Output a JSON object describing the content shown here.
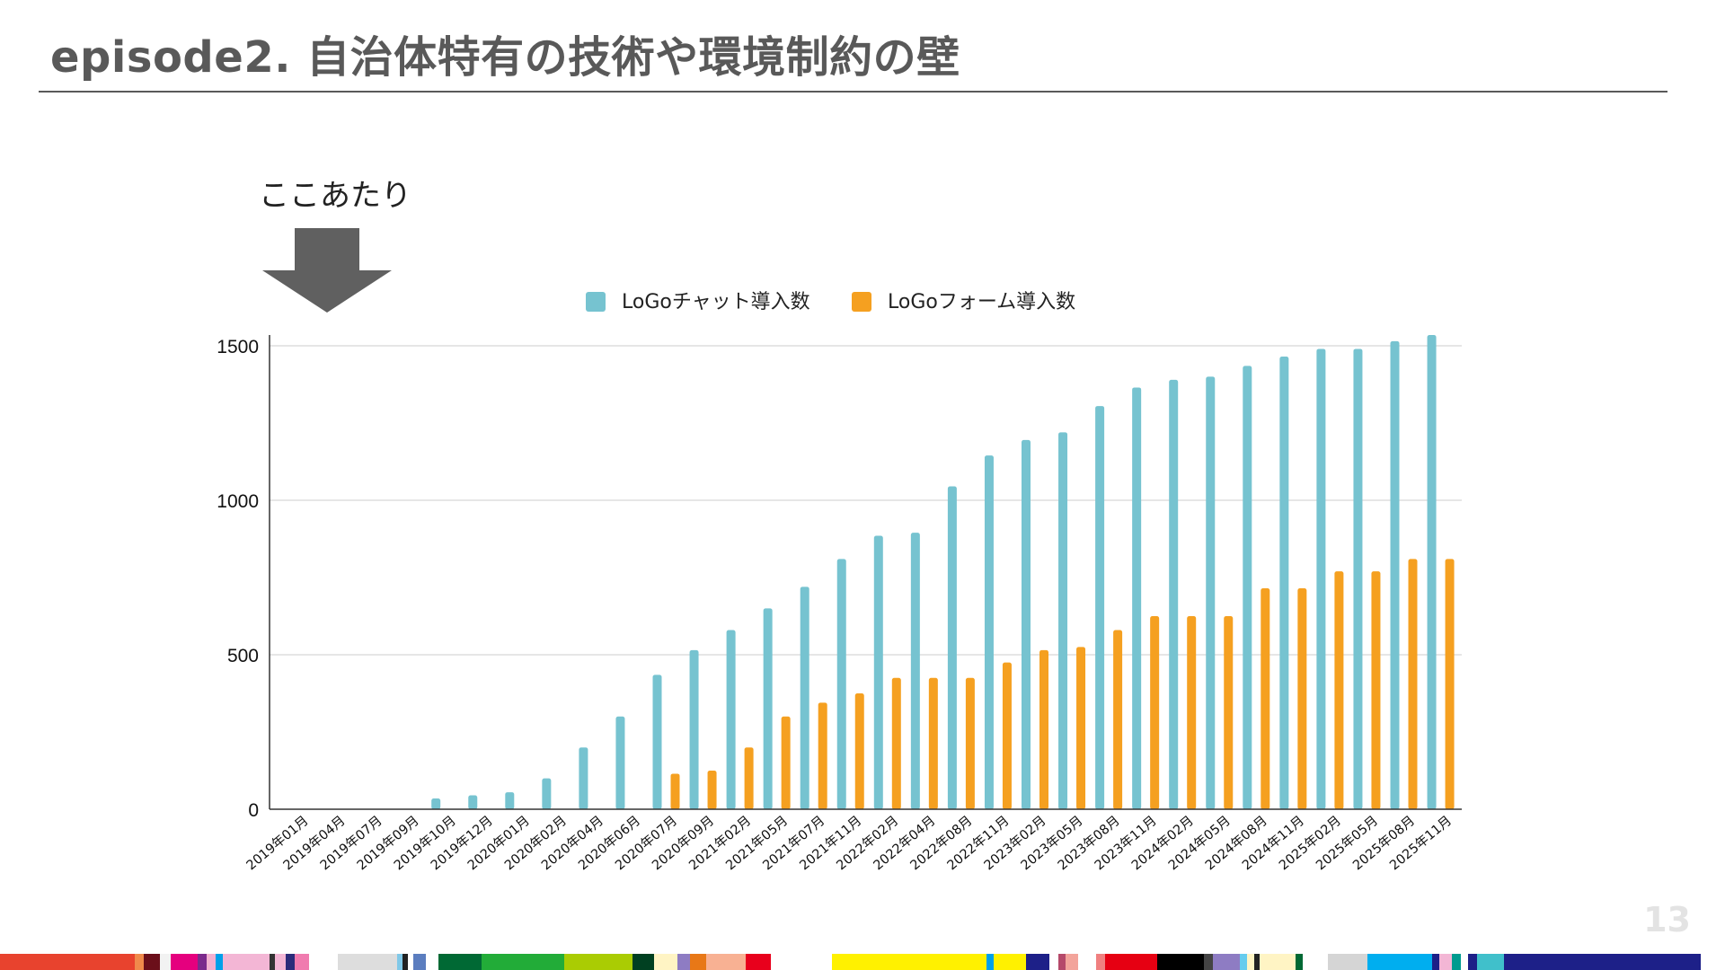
{
  "slide": {
    "title": "episode2. 自治体特有の技術や環境制約の壁",
    "callout_text": "ここあたり",
    "page_number": "13"
  },
  "colors": {
    "title": "#595959",
    "series_chat": "#76C3D0",
    "series_form": "#F5A020",
    "grid": "#CCCCCC",
    "axis": "#333333",
    "arrow": "#606060",
    "page_number": "#E3E3E3"
  },
  "chart_data": {
    "type": "bar",
    "title": "",
    "xlabel": "",
    "ylabel": "",
    "ylim": [
      0,
      1500
    ],
    "yticks": [
      0,
      500,
      1000,
      1500
    ],
    "grid": true,
    "legend_position": "top",
    "categories": [
      "2019年01月",
      "2019年04月",
      "2019年07月",
      "2019年09月",
      "2019年10月",
      "2019年12月",
      "2020年01月",
      "2020年02月",
      "2020年04月",
      "2020年06月",
      "2020年07月",
      "2020年09月",
      "2021年02月",
      "2021年05月",
      "2021年07月",
      "2021年11月",
      "2022年02月",
      "2022年04月",
      "2022年08月",
      "2022年11月",
      "2023年02月",
      "2023年05月",
      "2023年08月",
      "2023年11月",
      "2024年02月",
      "2024年05月",
      "2024年08月",
      "2024年11月",
      "2025年02月",
      "2025年05月",
      "2025年08月",
      "2025年11月"
    ],
    "series": [
      {
        "name": "LoGoチャット導入数",
        "color": "#76C3D0",
        "values": [
          0,
          0,
          0,
          0,
          35,
          45,
          55,
          100,
          200,
          300,
          435,
          515,
          580,
          650,
          720,
          810,
          885,
          895,
          1045,
          1145,
          1195,
          1220,
          1305,
          1365,
          1390,
          1400,
          1435,
          1465,
          1490,
          1490,
          1515,
          1535
        ]
      },
      {
        "name": "LoGoフォーム導入数",
        "color": "#F5A020",
        "values": [
          0,
          0,
          0,
          0,
          0,
          0,
          0,
          0,
          0,
          0,
          115,
          125,
          200,
          300,
          345,
          375,
          425,
          425,
          425,
          475,
          515,
          525,
          580,
          625,
          625,
          625,
          715,
          715,
          770,
          770,
          810,
          810
        ]
      }
    ]
  },
  "footer_strip": [
    {
      "w": 150,
      "c": "#E8432E"
    },
    {
      "w": 10,
      "c": "#F08A4B"
    },
    {
      "w": 18,
      "c": "#6B0F1A"
    },
    {
      "w": 12,
      "c": "#F2F2F2"
    },
    {
      "w": 30,
      "c": "#E5007E"
    },
    {
      "w": 10,
      "c": "#7B2A8C"
    },
    {
      "w": 10,
      "c": "#F3B0D0"
    },
    {
      "w": 8,
      "c": "#00A0E9"
    },
    {
      "w": 52,
      "c": "#F3B6D5"
    },
    {
      "w": 6,
      "c": "#333333"
    },
    {
      "w": 12,
      "c": "#F3B6D5"
    },
    {
      "w": 10,
      "c": "#2B2B7A"
    },
    {
      "w": 16,
      "c": "#F07BAF"
    },
    {
      "w": 32,
      "c": "#FFFFFF"
    },
    {
      "w": 66,
      "c": "#DDDDDD"
    },
    {
      "w": 6,
      "c": "#80C8E8"
    },
    {
      "w": 6,
      "c": "#222222"
    },
    {
      "w": 6,
      "c": "#FFFFFF"
    },
    {
      "w": 14,
      "c": "#5B7DBF"
    },
    {
      "w": 14,
      "c": "#FFFFFF"
    },
    {
      "w": 48,
      "c": "#006934"
    },
    {
      "w": 92,
      "c": "#22AC38"
    },
    {
      "w": 76,
      "c": "#AACC03"
    },
    {
      "w": 24,
      "c": "#004021"
    },
    {
      "w": 26,
      "c": "#FFF4C4"
    },
    {
      "w": 14,
      "c": "#8E7CC3"
    },
    {
      "w": 18,
      "c": "#E87817"
    },
    {
      "w": 44,
      "c": "#F8B193"
    },
    {
      "w": 28,
      "c": "#E8001C"
    },
    {
      "w": 68,
      "c": "#FFFFFF"
    },
    {
      "w": 172,
      "c": "#FFF100"
    },
    {
      "w": 8,
      "c": "#00A0E9"
    },
    {
      "w": 36,
      "c": "#FFF100"
    },
    {
      "w": 26,
      "c": "#1D2088"
    },
    {
      "w": 10,
      "c": "#FFFFFF"
    },
    {
      "w": 8,
      "c": "#B5496A"
    },
    {
      "w": 14,
      "c": "#F3A49B"
    },
    {
      "w": 20,
      "c": "#FFFFFF"
    },
    {
      "w": 10,
      "c": "#F08080"
    },
    {
      "w": 58,
      "c": "#E60012"
    },
    {
      "w": 52,
      "c": "#000000"
    },
    {
      "w": 10,
      "c": "#444444"
    },
    {
      "w": 30,
      "c": "#8E7CC3"
    },
    {
      "w": 8,
      "c": "#66CCEE"
    },
    {
      "w": 8,
      "c": "#FFF4C4"
    },
    {
      "w": 6,
      "c": "#222222"
    },
    {
      "w": 40,
      "c": "#FFF4C4"
    },
    {
      "w": 8,
      "c": "#006934"
    },
    {
      "w": 28,
      "c": "#FFFFFF"
    },
    {
      "w": 44,
      "c": "#D5D5D5"
    },
    {
      "w": 72,
      "c": "#00AEEF"
    },
    {
      "w": 8,
      "c": "#1D2088"
    },
    {
      "w": 14,
      "c": "#F3B6D5"
    },
    {
      "w": 10,
      "c": "#009B8F"
    },
    {
      "w": 8,
      "c": "#FFFFFF"
    },
    {
      "w": 10,
      "c": "#1D2088"
    },
    {
      "w": 30,
      "c": "#40C0CB"
    },
    {
      "w": 219,
      "c": "#1D2088"
    }
  ]
}
